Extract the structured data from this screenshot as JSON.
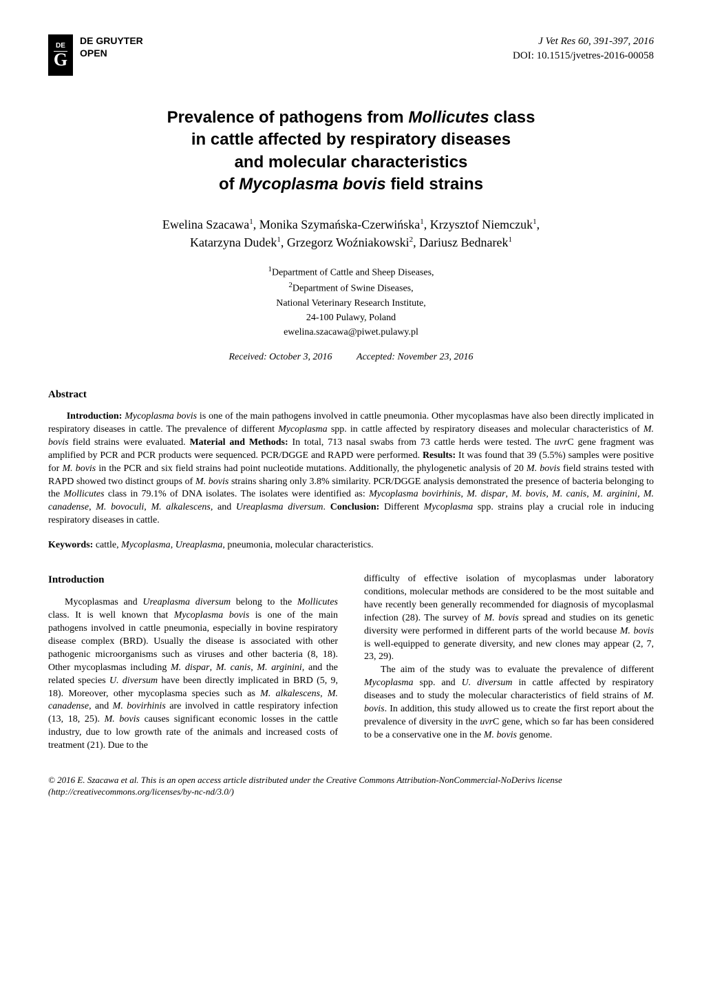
{
  "publisher": {
    "logo_de": "DE",
    "logo_g": "G",
    "name_line1": "DE GRUYTER",
    "name_line2": "OPEN"
  },
  "journal": {
    "citation": "J Vet Res 60, 391-397, 2016",
    "doi": "DOI: 10.1515/jvetres-2016-00058"
  },
  "title": {
    "line1_pre": "Prevalence of pathogens from ",
    "line1_it": "Mollicutes",
    "line1_post": " class",
    "line2": "in cattle affected by respiratory diseases",
    "line3": "and molecular characteristics",
    "line4_pre": "of ",
    "line4_it": "Mycoplasma bovis",
    "line4_post": " field strains"
  },
  "authors": {
    "a1_name": "Ewelina Szacawa",
    "a1_sup": "1",
    "a2_name": "Monika Szymańska-Czerwińska",
    "a2_sup": "1",
    "a3_name": "Krzysztof Niemczuk",
    "a3_sup": "1",
    "a4_name": "Katarzyna Dudek",
    "a4_sup": "1",
    "a5_name": "Grzegorz Woźniakowski",
    "a5_sup": "2",
    "a6_name": "Dariusz Bednarek",
    "a6_sup": "1"
  },
  "affiliations": {
    "aff1_sup": "1",
    "aff1": "Department of Cattle and Sheep Diseases,",
    "aff2_sup": "2",
    "aff2": "Department of Swine Diseases,",
    "aff3": "National Veterinary Research Institute,",
    "aff4": "24-100 Pulawy, Poland",
    "email": "ewelina.szacawa@piwet.pulawy.pl"
  },
  "dates": {
    "received": "Received: October 3, 2016",
    "accepted": "Accepted: November 23, 2016"
  },
  "abstract": {
    "heading": "Abstract",
    "intro_label": "Introduction:",
    "intro_text_1": " ",
    "intro_it_1": "Mycoplasma bovis",
    "intro_text_2": " is one of the main pathogens involved in cattle pneumonia. Other mycoplasmas have also been directly implicated in respiratory diseases in cattle. The prevalence of different ",
    "intro_it_2": "Mycoplasma",
    "intro_text_3": " spp. in cattle affected by respiratory diseases and molecular characteristics of ",
    "intro_it_3": "M. bovis",
    "intro_text_4": " field strains were evaluated. ",
    "mm_label": "Material and Methods:",
    "mm_text_1": " In total, 713 nasal swabs from 73 cattle herds were tested. The ",
    "mm_it_1": "uvr",
    "mm_text_2": "C gene fragment was amplified by PCR and PCR products were sequenced. PCR/DGGE and RAPD were performed. ",
    "res_label": "Results:",
    "res_text_1": " It was found that 39 (5.5%) samples were positive for ",
    "res_it_1": "M. bovis",
    "res_text_2": " in the PCR and six field strains had point nucleotide mutations. Additionally, the phylogenetic analysis of 20 ",
    "res_it_2": "M. bovis",
    "res_text_3": " field strains tested with RAPD showed two distinct groups of ",
    "res_it_3": "M. bovis",
    "res_text_4": " strains sharing only 3.8% similarity. PCR/DGGE analysis demonstrated the presence of bacteria belonging to the ",
    "res_it_4": "Mollicutes",
    "res_text_5": " class in 79.1% of DNA isolates. The isolates were identified as: ",
    "res_it_5": "Mycoplasma bovirhinis",
    "res_text_6": ", ",
    "res_it_6": "M. dispar",
    "res_text_7": ", ",
    "res_it_7": "M. bovis, M. canis",
    "res_text_8": ", ",
    "res_it_8": "M. arginini, M. canadense",
    "res_text_9": ", ",
    "res_it_9": "M. bovoculi",
    "res_text_10": ", ",
    "res_it_10": "M. alkalescens",
    "res_text_11": ", and ",
    "res_it_11": "Ureaplasma diversum",
    "res_text_12": ". ",
    "con_label": "Conclusion:",
    "con_text_1": " Different ",
    "con_it_1": "Mycoplasma",
    "con_text_2": " spp. strains play a crucial role in inducing respiratory diseases in cattle."
  },
  "keywords": {
    "label": "Keywords:",
    "t1": " cattle, ",
    "it1": "Mycoplasma",
    "t2": ", ",
    "it2": "Ureaplasma",
    "t3": ", pneumonia, molecular characteristics."
  },
  "introduction": {
    "heading": "Introduction",
    "p1_t1": "Mycoplasmas and ",
    "p1_it1": "Ureaplasma diversum",
    "p1_t2": " belong to the ",
    "p1_it2": "Mollicutes",
    "p1_t3": " class. It is well known that ",
    "p1_it3": "Mycoplasma bovis",
    "p1_t4": " is one of the main pathogens involved in cattle pneumonia, especially in bovine respiratory disease complex (BRD). Usually the disease is associated with other pathogenic microorganisms such as viruses and other bacteria (8, 18). Other mycoplasmas including ",
    "p1_it4": "M. dispar",
    "p1_t5": ", ",
    "p1_it5": "M. canis",
    "p1_t6": ", ",
    "p1_it6": "M. arginini",
    "p1_t7": ", and the related species ",
    "p1_it7": "U. diversum",
    "p1_t8": " have been directly implicated in BRD (5, 9, 18). Moreover, other mycoplasma species such as ",
    "p1_it8": "M. alkalescens",
    "p1_t9": ", ",
    "p1_it9": "M. canadense",
    "p1_t10": ", and ",
    "p1_it10": "M. bovirhinis",
    "p1_t11": " are involved in cattle respiratory infection (13, 18, 25). ",
    "p1_it11": "M. bovis",
    "p1_t12": " causes significant economic losses in the cattle industry, due to low growth rate of the animals and increased costs of treatment (21). Due to the",
    "p2_t1": "difficulty of effective isolation of mycoplasmas under laboratory conditions, molecular methods are considered to be the most suitable and have recently been generally recommended for diagnosis of mycoplasmal infection (28). The survey of ",
    "p2_it1": "M. bovis",
    "p2_t2": " spread and studies on its genetic diversity were performed in different parts of the world because ",
    "p2_it2": "M. bovis",
    "p2_t3": " is well-equipped to generate diversity, and new clones may appear (2, 7, 23, 29).",
    "p3_t1": "The aim of the study was to evaluate the prevalence of different ",
    "p3_it1": "Mycoplasma",
    "p3_t2": " spp. and ",
    "p3_it2": "U. diversum",
    "p3_t3": " in cattle affected by respiratory diseases and to study the molecular characteristics of field strains of ",
    "p3_it3": "M. bovis",
    "p3_t4": ". In addition, this study allowed us to create the first report about the prevalence of diversity in the ",
    "p3_it4": "uvr",
    "p3_t5": "C gene, which so far has been considered to be a conservative one in the ",
    "p3_it5": "M. bovis",
    "p3_t6": " genome."
  },
  "footer": {
    "text": "© 2016 E. Szacawa et al. This is an open access article distributed under the Creative Commons Attribution-NonCommercial-NoDerivs license (http://creativecommons.org/licenses/by-nc-nd/3.0/)"
  },
  "colors": {
    "background": "#ffffff",
    "text": "#000000",
    "logo_bg": "#000000",
    "logo_fg": "#ffffff"
  },
  "typography": {
    "title_fontsize": 24,
    "body_fontsize": 14,
    "authors_fontsize": 18,
    "affiliation_fontsize": 14
  }
}
